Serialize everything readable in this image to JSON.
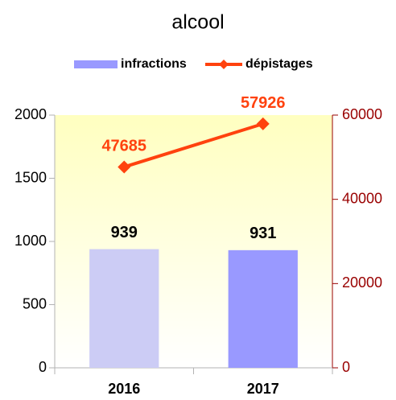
{
  "chart_data": {
    "type": "bar",
    "title": "alcool",
    "categories": [
      "2016",
      "2017"
    ],
    "series": [
      {
        "name": "infractions",
        "type": "bar",
        "color": "#9999ff",
        "colors": [
          "#ccccf5",
          "#9999ff"
        ],
        "values": [
          939,
          931
        ]
      },
      {
        "name": "dépistages",
        "type": "line",
        "axis": "y2",
        "color": "#ff420e",
        "values": [
          47685,
          57926
        ]
      }
    ],
    "ylim": [
      0,
      2000
    ],
    "yticks": [
      0,
      500,
      1000,
      1500,
      2000
    ],
    "y2lim": [
      0,
      60000
    ],
    "y2ticks": [
      0,
      20000,
      40000,
      60000
    ],
    "y2color": "#990000",
    "legend": "top"
  }
}
